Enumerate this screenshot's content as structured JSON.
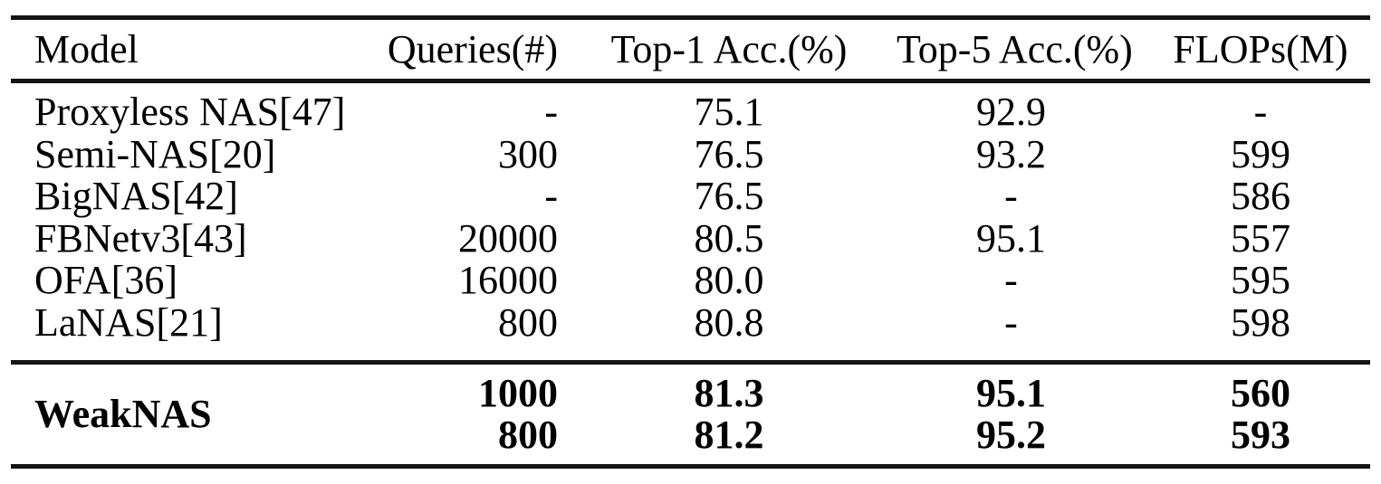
{
  "table": {
    "headers": [
      "Model",
      "Queries(#)",
      "Top-1 Acc.(%)",
      "Top-5 Acc.(%)",
      "FLOPs(M)"
    ],
    "rows": [
      {
        "model": "Proxyless NAS[47]",
        "queries": "-",
        "top1": "75.1",
        "top5": "92.9",
        "flops": "-"
      },
      {
        "model": "Semi-NAS[20]",
        "queries": "300",
        "top1": "76.5",
        "top5": "93.2",
        "flops": "599"
      },
      {
        "model": "BigNAS[42]",
        "queries": "-",
        "top1": "76.5",
        "top5": "-",
        "flops": "586"
      },
      {
        "model": "FBNetv3[43]",
        "queries": "20000",
        "top1": "80.5",
        "top5": "95.1",
        "flops": "557"
      },
      {
        "model": "OFA[36]",
        "queries": "16000",
        "top1": "80.0",
        "top5": "-",
        "flops": "595"
      },
      {
        "model": "LaNAS[21]",
        "queries": "800",
        "top1": "80.8",
        "top5": "-",
        "flops": "598"
      }
    ],
    "highlight": {
      "model": "WeakNAS",
      "rows": [
        {
          "queries": "1000",
          "top1": "81.3",
          "top5": "95.1",
          "flops": "560"
        },
        {
          "queries": "800",
          "top1": "81.2",
          "top5": "95.2",
          "flops": "593"
        }
      ]
    }
  },
  "colors": {
    "background": "#ffffff",
    "text": "#000000",
    "rule": "#141414"
  }
}
